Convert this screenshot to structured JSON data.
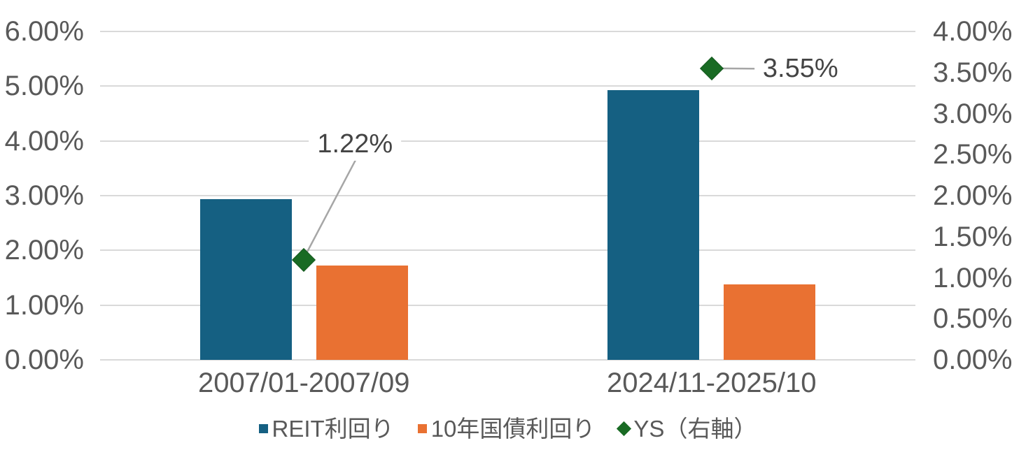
{
  "chart_data": {
    "type": "bar",
    "subtype": "combo-clustered-bar-with-scatter-markers-dual-axis",
    "categories": [
      "2007/01-2007/09",
      "2024/11-2025/10"
    ],
    "series": [
      {
        "name": "REIT利回り",
        "type": "bar",
        "axis": "left",
        "color": "#156082",
        "values": [
          2.94,
          4.93
        ]
      },
      {
        "name": "10年国債利回り",
        "type": "bar",
        "axis": "left",
        "color": "#E97132",
        "values": [
          1.72,
          1.38
        ]
      },
      {
        "name": "YS（右軸）",
        "type": "scatter",
        "axis": "right",
        "marker": "diamond",
        "color": "#196B24",
        "marker_border_color": "#14591E",
        "values": [
          1.22,
          3.55
        ],
        "data_labels": [
          "1.22%",
          "3.55%"
        ]
      }
    ],
    "left_axis": {
      "min": 0,
      "max": 6,
      "tick_labels": [
        "6.00%",
        "5.00%",
        "4.00%",
        "3.00%",
        "2.00%",
        "1.00%",
        "0.00%"
      ]
    },
    "right_axis": {
      "min": 0,
      "max": 4,
      "tick_labels": [
        "4.00%",
        "3.50%",
        "3.00%",
        "2.50%",
        "2.00%",
        "1.50%",
        "1.00%",
        "0.50%",
        "0.00%"
      ]
    },
    "grid": true,
    "legend_position": "bottom",
    "colors": {
      "background": "#FFFFFF",
      "gridline": "#D9D9D9",
      "tick_text": "#595959",
      "data_label_text": "#444444",
      "leader_line": "#A6A6A6"
    }
  }
}
